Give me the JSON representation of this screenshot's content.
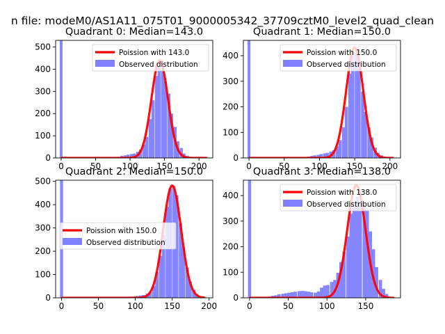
{
  "figure": {
    "suptitle": "n file: modeM0/AS1A11_075T01_9000005342_37709cztM0_level2_quad_clean"
  },
  "chart_data": [
    {
      "type": "bar",
      "title": "Quadrant 0: Median=143.0",
      "xlim": [
        -8,
        220
      ],
      "ylim": [
        0,
        530
      ],
      "xticks": [
        0,
        50,
        100,
        150,
        200
      ],
      "yticks": [
        0,
        100,
        200,
        300,
        400,
        500
      ],
      "legend_position": "top-right",
      "series": [
        {
          "name": "Poission with 143.0",
          "kind": "line",
          "color": "#ff0000",
          "mean": 143,
          "peak": 440,
          "sigma": 12.0,
          "x_range": [
            0,
            212
          ]
        },
        {
          "name": "Observed distribution",
          "kind": "histogram",
          "color": "#8080ff",
          "bin_width": 4.5,
          "bins": [
            {
              "x": 0,
              "y": 530
            },
            {
              "x": 82,
              "y": 5
            },
            {
              "x": 86,
              "y": 10
            },
            {
              "x": 91,
              "y": 12
            },
            {
              "x": 95,
              "y": 15
            },
            {
              "x": 100,
              "y": 18
            },
            {
              "x": 104,
              "y": 20
            },
            {
              "x": 109,
              "y": 28
            },
            {
              "x": 113,
              "y": 38
            },
            {
              "x": 118,
              "y": 60
            },
            {
              "x": 122,
              "y": 95
            },
            {
              "x": 127,
              "y": 175
            },
            {
              "x": 131,
              "y": 260
            },
            {
              "x": 136,
              "y": 370
            },
            {
              "x": 140,
              "y": 410
            },
            {
              "x": 145,
              "y": 405
            },
            {
              "x": 149,
              "y": 345
            },
            {
              "x": 154,
              "y": 290
            },
            {
              "x": 158,
              "y": 200
            },
            {
              "x": 163,
              "y": 140
            },
            {
              "x": 167,
              "y": 75
            },
            {
              "x": 172,
              "y": 45
            },
            {
              "x": 176,
              "y": 20
            },
            {
              "x": 181,
              "y": 10
            },
            {
              "x": 185,
              "y": 5
            }
          ]
        }
      ]
    },
    {
      "type": "bar",
      "title": "Quadrant 1: Median=150.0",
      "xlim": [
        -8,
        215
      ],
      "ylim": [
        0,
        460
      ],
      "xticks": [
        0,
        50,
        100,
        150,
        200
      ],
      "yticks": [
        0,
        100,
        200,
        300,
        400
      ],
      "legend_position": "top-right",
      "series": [
        {
          "name": "Poission with 150.0",
          "kind": "line",
          "color": "#ff0000",
          "mean": 150,
          "peak": 432,
          "sigma": 12.2,
          "x_range": [
            0,
            205
          ]
        },
        {
          "name": "Observed distribution",
          "kind": "histogram",
          "color": "#8080ff",
          "bin_width": 4.5,
          "bins": [
            {
              "x": 0,
              "y": 460
            },
            {
              "x": 78,
              "y": 3
            },
            {
              "x": 82,
              "y": 5
            },
            {
              "x": 87,
              "y": 8
            },
            {
              "x": 91,
              "y": 10
            },
            {
              "x": 96,
              "y": 12
            },
            {
              "x": 100,
              "y": 15
            },
            {
              "x": 105,
              "y": 18
            },
            {
              "x": 109,
              "y": 20
            },
            {
              "x": 114,
              "y": 25
            },
            {
              "x": 118,
              "y": 30
            },
            {
              "x": 123,
              "y": 45
            },
            {
              "x": 127,
              "y": 70
            },
            {
              "x": 132,
              "y": 120
            },
            {
              "x": 136,
              "y": 200
            },
            {
              "x": 141,
              "y": 330
            },
            {
              "x": 145,
              "y": 400
            },
            {
              "x": 150,
              "y": 410
            },
            {
              "x": 154,
              "y": 380
            },
            {
              "x": 159,
              "y": 260
            },
            {
              "x": 163,
              "y": 180
            },
            {
              "x": 168,
              "y": 120
            },
            {
              "x": 172,
              "y": 80
            },
            {
              "x": 177,
              "y": 40
            },
            {
              "x": 181,
              "y": 20
            },
            {
              "x": 186,
              "y": 10
            },
            {
              "x": 190,
              "y": 5
            }
          ]
        }
      ]
    },
    {
      "type": "bar",
      "title": "Quadrant 2: Median=150.0",
      "xlim": [
        -8,
        205
      ],
      "ylim": [
        0,
        505
      ],
      "xticks": [
        0,
        50,
        100,
        150,
        200
      ],
      "yticks": [
        0,
        100,
        200,
        300,
        400,
        500
      ],
      "legend_position": "center-left",
      "series": [
        {
          "name": "Poission with 150.0",
          "kind": "line",
          "color": "#ff0000",
          "mean": 150,
          "peak": 482,
          "sigma": 12.2,
          "x_range": [
            0,
            195
          ]
        },
        {
          "name": "Observed distribution",
          "kind": "histogram",
          "color": "#8080ff",
          "bin_width": 4.5,
          "bins": [
            {
              "x": 0,
              "y": 505
            },
            {
              "x": 82,
              "y": 2
            },
            {
              "x": 87,
              "y": 4
            },
            {
              "x": 91,
              "y": 5
            },
            {
              "x": 96,
              "y": 6
            },
            {
              "x": 100,
              "y": 8
            },
            {
              "x": 105,
              "y": 10
            },
            {
              "x": 109,
              "y": 12
            },
            {
              "x": 114,
              "y": 18
            },
            {
              "x": 118,
              "y": 25
            },
            {
              "x": 123,
              "y": 50
            },
            {
              "x": 127,
              "y": 110
            },
            {
              "x": 132,
              "y": 180
            },
            {
              "x": 136,
              "y": 270
            },
            {
              "x": 141,
              "y": 390
            },
            {
              "x": 145,
              "y": 470
            },
            {
              "x": 150,
              "y": 480
            },
            {
              "x": 154,
              "y": 440
            },
            {
              "x": 159,
              "y": 320
            },
            {
              "x": 163,
              "y": 220
            },
            {
              "x": 168,
              "y": 130
            },
            {
              "x": 172,
              "y": 70
            },
            {
              "x": 177,
              "y": 35
            },
            {
              "x": 181,
              "y": 15
            },
            {
              "x": 186,
              "y": 5
            }
          ]
        }
      ]
    },
    {
      "type": "bar",
      "title": "Quadrant 3: Median=138.0",
      "xlim": [
        -8,
        195
      ],
      "ylim": [
        0,
        460
      ],
      "xticks": [
        0,
        50,
        100,
        150
      ],
      "yticks": [
        0,
        100,
        200,
        300,
        400
      ],
      "legend_position": "top-right",
      "series": [
        {
          "name": "Poission with 138.0",
          "kind": "line",
          "color": "#ff0000",
          "mean": 138,
          "peak": 440,
          "sigma": 11.8,
          "x_range": [
            0,
            187
          ]
        },
        {
          "name": "Observed distribution",
          "kind": "histogram",
          "color": "#8080ff",
          "bin_width": 4.2,
          "bins": [
            {
              "x": 0,
              "y": 460
            },
            {
              "x": 20,
              "y": 3
            },
            {
              "x": 24,
              "y": 5
            },
            {
              "x": 28,
              "y": 8
            },
            {
              "x": 32,
              "y": 10
            },
            {
              "x": 36,
              "y": 14
            },
            {
              "x": 41,
              "y": 16
            },
            {
              "x": 45,
              "y": 18
            },
            {
              "x": 49,
              "y": 20
            },
            {
              "x": 53,
              "y": 22
            },
            {
              "x": 57,
              "y": 24
            },
            {
              "x": 62,
              "y": 26
            },
            {
              "x": 66,
              "y": 27
            },
            {
              "x": 70,
              "y": 26
            },
            {
              "x": 74,
              "y": 24
            },
            {
              "x": 78,
              "y": 22
            },
            {
              "x": 83,
              "y": 20
            },
            {
              "x": 87,
              "y": 25
            },
            {
              "x": 91,
              "y": 40
            },
            {
              "x": 95,
              "y": 48
            },
            {
              "x": 99,
              "y": 50
            },
            {
              "x": 104,
              "y": 62
            },
            {
              "x": 108,
              "y": 70
            },
            {
              "x": 112,
              "y": 98
            },
            {
              "x": 116,
              "y": 140
            },
            {
              "x": 120,
              "y": 180
            },
            {
              "x": 125,
              "y": 240
            },
            {
              "x": 129,
              "y": 330
            },
            {
              "x": 133,
              "y": 360
            },
            {
              "x": 137,
              "y": 395
            },
            {
              "x": 141,
              "y": 375
            },
            {
              "x": 146,
              "y": 360
            },
            {
              "x": 150,
              "y": 345
            },
            {
              "x": 154,
              "y": 260
            },
            {
              "x": 158,
              "y": 190
            },
            {
              "x": 162,
              "y": 120
            },
            {
              "x": 167,
              "y": 70
            },
            {
              "x": 171,
              "y": 35
            },
            {
              "x": 175,
              "y": 15
            },
            {
              "x": 179,
              "y": 5
            }
          ]
        }
      ]
    }
  ]
}
